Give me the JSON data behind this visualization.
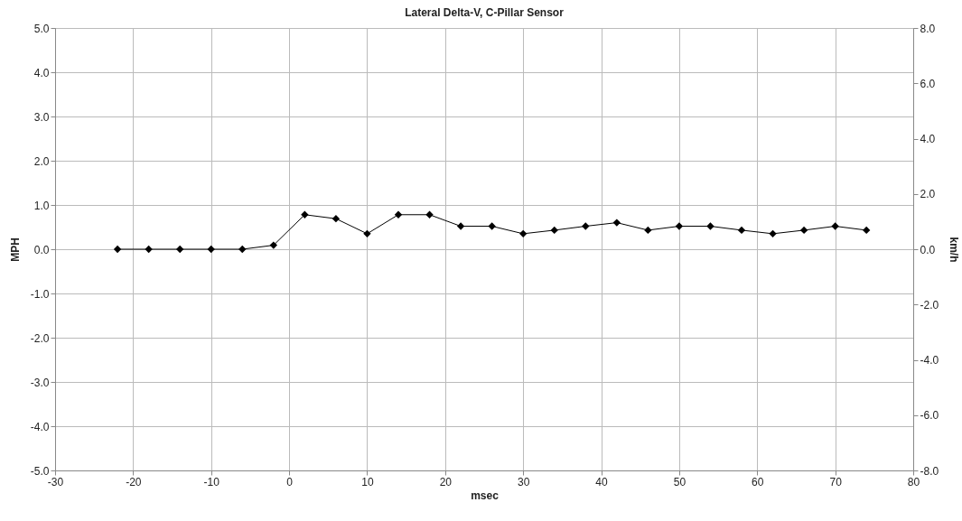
{
  "chart_data": {
    "type": "line",
    "title": "Lateral Delta-V, C-Pillar Sensor",
    "xlabel": "msec",
    "ylabel": "MPH",
    "y2label": "km/h",
    "x": [
      -22,
      -18,
      -14,
      -10,
      -6,
      -2,
      2,
      6,
      10,
      14,
      18,
      22,
      26,
      30,
      34,
      38,
      42,
      46,
      50,
      54,
      58,
      62,
      66,
      70,
      74
    ],
    "series": [
      {
        "color": "#000000",
        "values": [
          0,
          0,
          0,
          0,
          0,
          0.09,
          0.78,
          0.69,
          0.35,
          0.78,
          0.78,
          0.52,
          0.52,
          0.35,
          0.43,
          0.52,
          0.6,
          0.43,
          0.52,
          0.52,
          0.43,
          0.35,
          0.43,
          0.52,
          0.43
        ]
      }
    ],
    "xlim": [
      -30,
      80
    ],
    "xticks": [
      -30,
      -20,
      -10,
      0,
      10,
      20,
      30,
      40,
      50,
      60,
      70,
      80
    ],
    "ylim": [
      -5,
      5
    ],
    "yticks": [
      {
        "value": -5,
        "label": "-5.0"
      },
      {
        "value": -4,
        "label": "-4.0"
      },
      {
        "value": -3,
        "label": "-3.0"
      },
      {
        "value": -2,
        "label": "-2.0"
      },
      {
        "value": -1,
        "label": "-1.0"
      },
      {
        "value": 0,
        "label": "0.0"
      },
      {
        "value": 1,
        "label": "1.0"
      },
      {
        "value": 2,
        "label": "2.0"
      },
      {
        "value": 3,
        "label": "3.0"
      },
      {
        "value": 4,
        "label": "4.0"
      },
      {
        "value": 5,
        "label": "5.0"
      }
    ],
    "y2lim": [
      -8,
      8
    ],
    "y2ticks": [
      {
        "value": -8,
        "label": "-8.0"
      },
      {
        "value": -6,
        "label": "-6.0"
      },
      {
        "value": -4,
        "label": "-4.0"
      },
      {
        "value": -2,
        "label": "-2.0"
      },
      {
        "value": 0,
        "label": "0.0"
      },
      {
        "value": 2,
        "label": "2.0"
      },
      {
        "value": 4,
        "label": "4.0"
      },
      {
        "value": 6,
        "label": "6.0"
      },
      {
        "value": 8,
        "label": "8.0"
      }
    ],
    "grid": true,
    "marker": "diamond",
    "line_style": "solid"
  }
}
